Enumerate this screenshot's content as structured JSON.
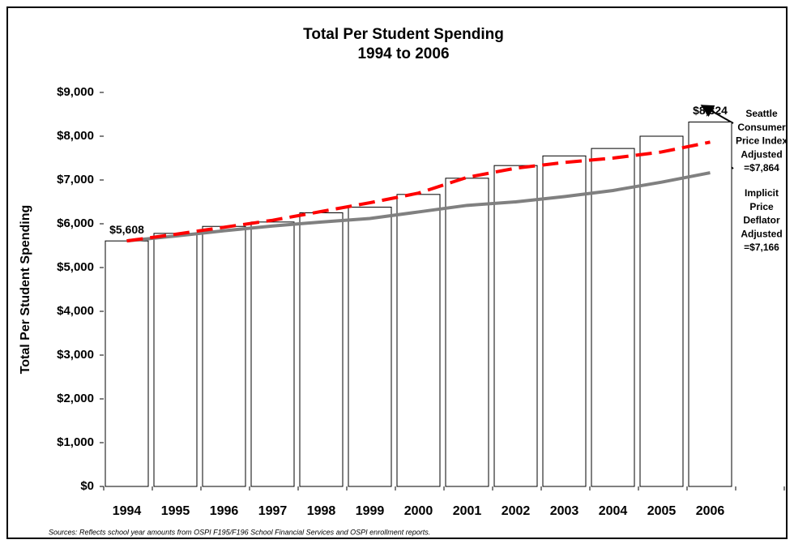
{
  "chart_data": {
    "type": "bar",
    "title": "Total Per Student Spending",
    "subtitle": "1994 to 2006",
    "y_label": "Total Per Student Spending",
    "source": "Sources:  Reflects school year amounts from OSPI F195/F196 School Financial Services and OSPI enrollment reports.",
    "categories": [
      "1994",
      "1995",
      "1996",
      "1997",
      "1998",
      "1999",
      "2000",
      "2001",
      "2002",
      "2003",
      "2004",
      "2005",
      "2006",
      null
    ],
    "series": [
      {
        "type": "bar",
        "color": "#ffffff",
        "values": [
          5608,
          5780,
          5940,
          6040,
          6250,
          6380,
          6670,
          7040,
          7330,
          7550,
          7720,
          8000,
          8324,
          null
        ],
        "value_labels": [
          "$5,608",
          null,
          null,
          null,
          null,
          null,
          null,
          null,
          null,
          null,
          null,
          null,
          "$8,324",
          null
        ]
      },
      {
        "type": "line",
        "color": "#ff0000",
        "dashed": true,
        "values": [
          5608,
          5760,
          5920,
          6080,
          6280,
          6480,
          6700,
          7060,
          7270,
          7400,
          7500,
          7640,
          7864,
          null
        ]
      },
      {
        "type": "line",
        "color": "#808080",
        "dashed": false,
        "values": [
          5608,
          5720,
          5840,
          5950,
          6040,
          6120,
          6270,
          6420,
          6500,
          6620,
          6760,
          6950,
          7166,
          null
        ]
      }
    ],
    "annotations": [
      {
        "lines": [
          "Seattle",
          "Consumer",
          "Price Index",
          "Adjusted",
          "=$7,864"
        ]
      },
      {
        "lines": [
          "Implicit",
          "Price",
          "Deflator",
          "Adjusted",
          "=$7,166"
        ]
      }
    ],
    "ylim": [
      0,
      9000
    ],
    "yticks": [
      {
        "value": 0,
        "label": "$0"
      },
      {
        "value": 1000,
        "label": "$1,000"
      },
      {
        "value": 2000,
        "label": "$2,000"
      },
      {
        "value": 3000,
        "label": "$3,000"
      },
      {
        "value": 4000,
        "label": "$4,000"
      },
      {
        "value": 5000,
        "label": "$5,000"
      },
      {
        "value": 6000,
        "label": "$6,000"
      },
      {
        "value": 7000,
        "label": "$7,000"
      },
      {
        "value": 8000,
        "label": "$8,000"
      },
      {
        "value": 9000,
        "label": "$9,000"
      }
    ],
    "grid": false
  }
}
